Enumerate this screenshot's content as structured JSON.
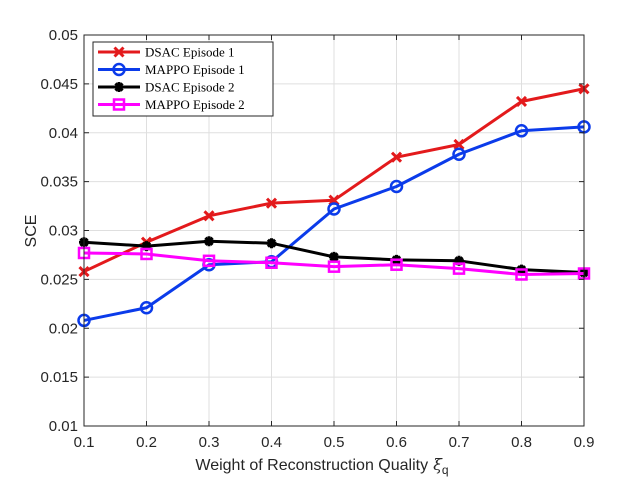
{
  "chart_data": {
    "type": "line",
    "title": "",
    "xlabel": "Weight of Reconstruction Quality",
    "xlabel_symbol": "ξ",
    "xlabel_subscript": "q",
    "ylabel": "SCE",
    "x": [
      0.1,
      0.2,
      0.3,
      0.4,
      0.5,
      0.6,
      0.7,
      0.8,
      0.9
    ],
    "xlim": [
      0.1,
      0.9
    ],
    "ylim": [
      0.01,
      0.05
    ],
    "xticks": [
      "0.1",
      "0.2",
      "0.3",
      "0.4",
      "0.5",
      "0.6",
      "0.7",
      "0.8",
      "0.9"
    ],
    "yticks": [
      "0.01",
      "0.015",
      "0.02",
      "0.025",
      "0.03",
      "0.035",
      "0.04",
      "0.045",
      "0.05"
    ],
    "grid": true,
    "legend_position": "top-left",
    "series": [
      {
        "name": "DSAC Episode 1",
        "color": "#e31a1c",
        "marker": "x",
        "values": [
          0.0258,
          0.0288,
          0.0315,
          0.0328,
          0.0331,
          0.0375,
          0.0388,
          0.0432,
          0.0445
        ]
      },
      {
        "name": "MAPPO Episode 1",
        "color": "#0b3bea",
        "marker": "circle",
        "values": [
          0.0208,
          0.0221,
          0.0265,
          0.0268,
          0.0322,
          0.0345,
          0.0378,
          0.0402,
          0.0406
        ]
      },
      {
        "name": "DSAC Episode 2",
        "color": "#000000",
        "marker": "star",
        "values": [
          0.0288,
          0.0284,
          0.0289,
          0.0287,
          0.0273,
          0.027,
          0.0269,
          0.026,
          0.0257
        ]
      },
      {
        "name": "MAPPO Episode 2",
        "color": "#ff00ff",
        "marker": "square",
        "values": [
          0.0277,
          0.0276,
          0.0269,
          0.0267,
          0.0263,
          0.0265,
          0.0261,
          0.0255,
          0.0256
        ]
      }
    ]
  }
}
